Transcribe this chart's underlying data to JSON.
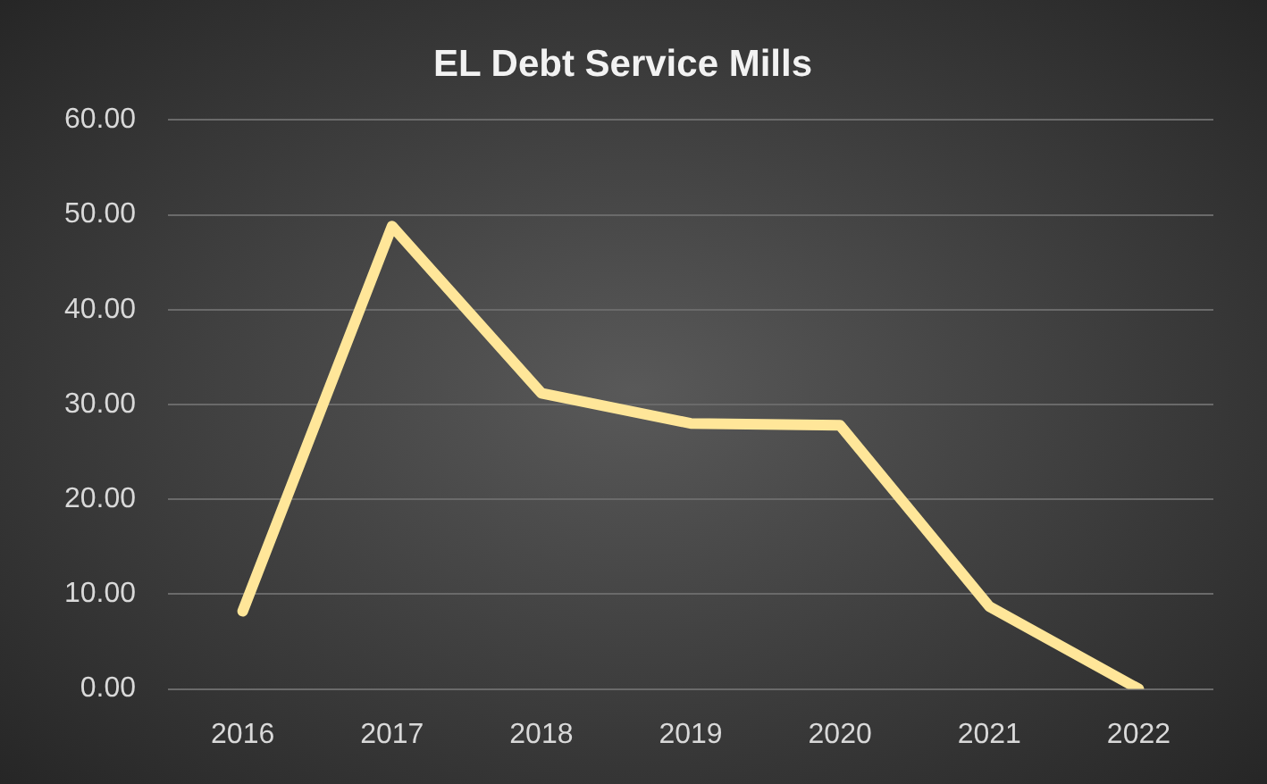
{
  "chart_data": {
    "type": "line",
    "title": "EL Debt Service Mills",
    "categories": [
      "2016",
      "2017",
      "2018",
      "2019",
      "2020",
      "2021",
      "2022"
    ],
    "series": [
      {
        "color": "#ffe699",
        "values": [
          8.2,
          48.8,
          31.2,
          28.0,
          27.8,
          8.7,
          0
        ]
      }
    ],
    "ylim": [
      0,
      60
    ],
    "yticks": [
      {
        "value": 0,
        "label": "0.00"
      },
      {
        "value": 10,
        "label": "10.00"
      },
      {
        "value": 20,
        "label": "20.00"
      },
      {
        "value": 30,
        "label": "30.00"
      },
      {
        "value": 40,
        "label": "40.00"
      },
      {
        "value": 50,
        "label": "50.00"
      },
      {
        "value": 60,
        "label": "60.00"
      }
    ],
    "grid": "y",
    "legend": false,
    "marker": "none",
    "line_style": "solid"
  }
}
